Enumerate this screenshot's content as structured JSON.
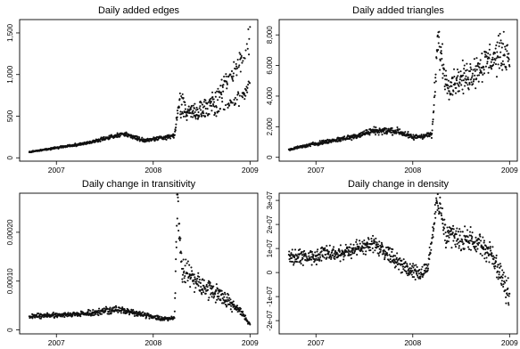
{
  "chart_data": [
    {
      "type": "scatter",
      "title": "Daily added edges",
      "xlabel": "",
      "ylabel": "",
      "xlim": [
        2006.62,
        2009.08
      ],
      "ylim": [
        -40,
        1660
      ],
      "x_ticks": [
        {
          "value": 2007,
          "label": "2007"
        },
        {
          "value": 2008,
          "label": "2008"
        },
        {
          "value": 2009,
          "label": "2009"
        }
      ],
      "y_ticks": [
        {
          "value": 0,
          "label": "0"
        },
        {
          "value": 500,
          "label": "500"
        },
        {
          "value": 1000,
          "label": "1,000"
        },
        {
          "value": 1500,
          "label": "1,500"
        }
      ],
      "trend": [
        [
          2006.72,
          70
        ],
        [
          2007.0,
          120
        ],
        [
          2007.3,
          175
        ],
        [
          2007.55,
          245
        ],
        [
          2007.7,
          290
        ],
        [
          2007.9,
          210
        ],
        [
          2008.05,
          230
        ],
        [
          2008.22,
          265
        ],
        [
          2008.28,
          760
        ],
        [
          2008.35,
          560
        ],
        [
          2008.55,
          640
        ],
        [
          2008.75,
          870
        ],
        [
          2008.95,
          1250
        ],
        [
          2009.0,
          1500
        ]
      ],
      "trend_lower": [
        [
          2008.28,
          520
        ],
        [
          2008.5,
          520
        ],
        [
          2008.7,
          600
        ],
        [
          2008.9,
          720
        ],
        [
          2009.0,
          900
        ]
      ],
      "jitter": 0.14,
      "n_points": 780
    },
    {
      "type": "scatter",
      "title": "Daily added triangles",
      "xlabel": "",
      "ylabel": "",
      "xlim": [
        2006.62,
        2009.08
      ],
      "ylim": [
        -250,
        9000
      ],
      "x_ticks": [
        {
          "value": 2007,
          "label": "2007"
        },
        {
          "value": 2008,
          "label": "2008"
        },
        {
          "value": 2009,
          "label": "2009"
        }
      ],
      "y_ticks": [
        {
          "value": 0,
          "label": "0"
        },
        {
          "value": 2000,
          "label": "2,000"
        },
        {
          "value": 4000,
          "label": "4,000"
        },
        {
          "value": 6000,
          "label": "6,000"
        },
        {
          "value": 8000,
          "label": "8,000"
        }
      ],
      "trend": [
        [
          2006.72,
          500
        ],
        [
          2007.0,
          900
        ],
        [
          2007.35,
          1300
        ],
        [
          2007.6,
          1750
        ],
        [
          2007.85,
          1700
        ],
        [
          2008.0,
          1300
        ],
        [
          2008.2,
          1500
        ],
        [
          2008.26,
          7700
        ],
        [
          2008.35,
          4800
        ],
        [
          2008.55,
          5200
        ],
        [
          2008.75,
          6200
        ],
        [
          2008.95,
          6900
        ],
        [
          2009.0,
          6600
        ]
      ],
      "jitter": 0.2,
      "n_points": 760
    },
    {
      "type": "scatter",
      "title": "Daily change in transitivity",
      "xlabel": "",
      "ylabel": "",
      "xlim": [
        2006.62,
        2009.08
      ],
      "ylim": [
        -8e-06,
        0.00028
      ],
      "x_ticks": [
        {
          "value": 2007,
          "label": "2007"
        },
        {
          "value": 2008,
          "label": "2008"
        },
        {
          "value": 2009,
          "label": "2009"
        }
      ],
      "y_ticks": [
        {
          "value": 0,
          "label": "0"
        },
        {
          "value": 0.0001,
          "label": "0.00010"
        },
        {
          "value": 0.0002,
          "label": "0.00020"
        }
      ],
      "trend": [
        [
          2006.72,
          2.8e-05
        ],
        [
          2007.3,
          3.3e-05
        ],
        [
          2007.6,
          4.2e-05
        ],
        [
          2007.75,
          3.8e-05
        ],
        [
          2008.1,
          2.2e-05
        ],
        [
          2008.22,
          2.5e-05
        ],
        [
          2008.25,
          0.00026
        ],
        [
          2008.3,
          0.00013
        ],
        [
          2008.45,
          0.0001
        ],
        [
          2008.7,
          7e-05
        ],
        [
          2008.9,
          4e-05
        ],
        [
          2009.0,
          1e-05
        ]
      ],
      "jitter": 0.25,
      "n_points": 760
    },
    {
      "type": "scatter",
      "title": "Daily change in density",
      "xlabel": "",
      "ylabel": "",
      "xlim": [
        2006.62,
        2009.08
      ],
      "ylim": [
        -2.55e-07,
        3.3e-07
      ],
      "x_ticks": [
        {
          "value": 2007,
          "label": "2007"
        },
        {
          "value": 2008,
          "label": "2008"
        },
        {
          "value": 2009,
          "label": "2009"
        }
      ],
      "y_ticks": [
        {
          "value": -2e-07,
          "label": "-2e-07"
        },
        {
          "value": -1e-07,
          "label": "-1e-07"
        },
        {
          "value": 0,
          "label": "0"
        },
        {
          "value": 1e-07,
          "label": "1e-07"
        },
        {
          "value": 2e-07,
          "label": "2e-07"
        },
        {
          "value": 3e-07,
          "label": "3e-07"
        }
      ],
      "trend": [
        [
          2006.72,
          6e-08
        ],
        [
          2007.0,
          7e-08
        ],
        [
          2007.35,
          9e-08
        ],
        [
          2007.6,
          1.2e-07
        ],
        [
          2007.75,
          8e-08
        ],
        [
          2007.95,
          1e-08
        ],
        [
          2008.15,
          0
        ],
        [
          2008.25,
          3e-07
        ],
        [
          2008.35,
          1.5e-07
        ],
        [
          2008.6,
          1.3e-07
        ],
        [
          2008.8,
          9e-08
        ],
        [
          2009.0,
          -1e-07
        ]
      ],
      "jitter_abs": 4.5e-08,
      "n_points": 760
    }
  ]
}
